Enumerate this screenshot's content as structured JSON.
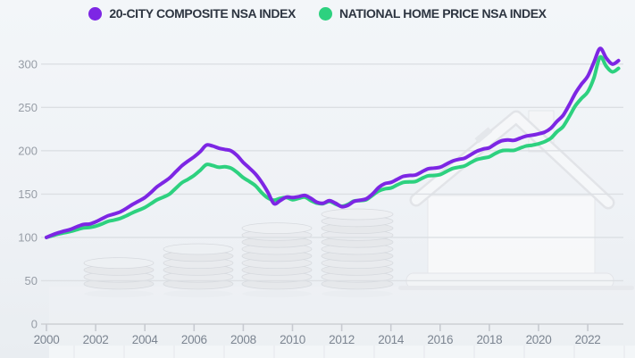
{
  "colors": {
    "purple_series": "#7d26e4",
    "green_series": "#2dd17f",
    "grid": "#dcdfe3",
    "axis": "#d5d8dc",
    "tick": "#c7cad0",
    "y_label": "#979da6",
    "x_label": "#7c8591",
    "legend_text": "#2d3541",
    "background_top": "#f3f6f9",
    "background_bottom": "#e9edf1"
  },
  "chart_data": {
    "type": "line",
    "title": "",
    "xlabel": "",
    "ylabel": "",
    "legend_position": "top-center",
    "grid": "horizontal",
    "watermark": "faded photo of four rising coin stacks and a white model house",
    "x_axis": {
      "tick_years": [
        2000,
        2002,
        2004,
        2006,
        2008,
        2010,
        2012,
        2014,
        2016,
        2018,
        2020,
        2022
      ],
      "range": [
        2000,
        2023.4
      ]
    },
    "y_axis": {
      "ticks": [
        0,
        50,
        100,
        150,
        200,
        250,
        300
      ],
      "range": [
        0,
        330
      ]
    },
    "x_start": 2000,
    "x_step": 0.25,
    "x_unit": "year (quarterly samples)",
    "series": [
      {
        "name": "20-CITY COMPOSITE NSA INDEX",
        "color": "#7d26e4",
        "values": [
          100,
          103,
          105.5,
          107.5,
          109.5,
          112.5,
          115,
          115.5,
          118,
          121.5,
          125,
          127,
          129.5,
          133.5,
          138,
          142,
          146,
          152,
          158.5,
          163.5,
          168.5,
          175.5,
          182.5,
          188,
          193,
          199,
          206.5,
          205.5,
          203,
          201.5,
          200,
          194.5,
          186.5,
          180,
          173,
          163.5,
          152,
          139,
          142.5,
          146.5,
          146,
          147,
          148.5,
          145,
          140.5,
          139.5,
          142.5,
          139.5,
          135.5,
          137,
          141.5,
          143,
          144.5,
          150,
          157.5,
          162,
          163.5,
          167,
          170.5,
          171.5,
          172,
          175.5,
          179,
          180,
          181,
          184.5,
          188,
          190,
          191.5,
          195.5,
          199.5,
          202,
          203.5,
          208,
          211.5,
          212.5,
          212,
          214.5,
          217,
          218,
          219.5,
          221.5,
          226,
          234,
          241,
          253,
          266.5,
          277,
          286,
          302,
          318,
          307,
          300,
          304
        ]
      },
      {
        "name": "NATIONAL HOME PRICE NSA INDEX",
        "color": "#2dd17f",
        "values": [
          100,
          102,
          104,
          105.5,
          107,
          109,
          111,
          111.5,
          113,
          115.5,
          118.5,
          120,
          122,
          125,
          128.5,
          131.5,
          134.5,
          139,
          143.5,
          146.5,
          150,
          156.5,
          163,
          167,
          171.5,
          177.5,
          184,
          183,
          181,
          181.5,
          180,
          175,
          169,
          164.5,
          159.5,
          151.5,
          145.5,
          143,
          145,
          146,
          143.5,
          145,
          146.5,
          142.5,
          139.5,
          139,
          141.5,
          138.5,
          136,
          138,
          142,
          142.5,
          143.5,
          148.5,
          153.5,
          156,
          157,
          160.5,
          163.5,
          164,
          164.5,
          168,
          171,
          171.5,
          172.5,
          176,
          179.5,
          181,
          182.5,
          186.5,
          190,
          191.5,
          193,
          197,
          200,
          200.5,
          200.5,
          203,
          205.5,
          206.5,
          208,
          210.5,
          214.5,
          222,
          228,
          239.5,
          252,
          260.5,
          268,
          284,
          308,
          297.5,
          291,
          295
        ]
      }
    ]
  }
}
